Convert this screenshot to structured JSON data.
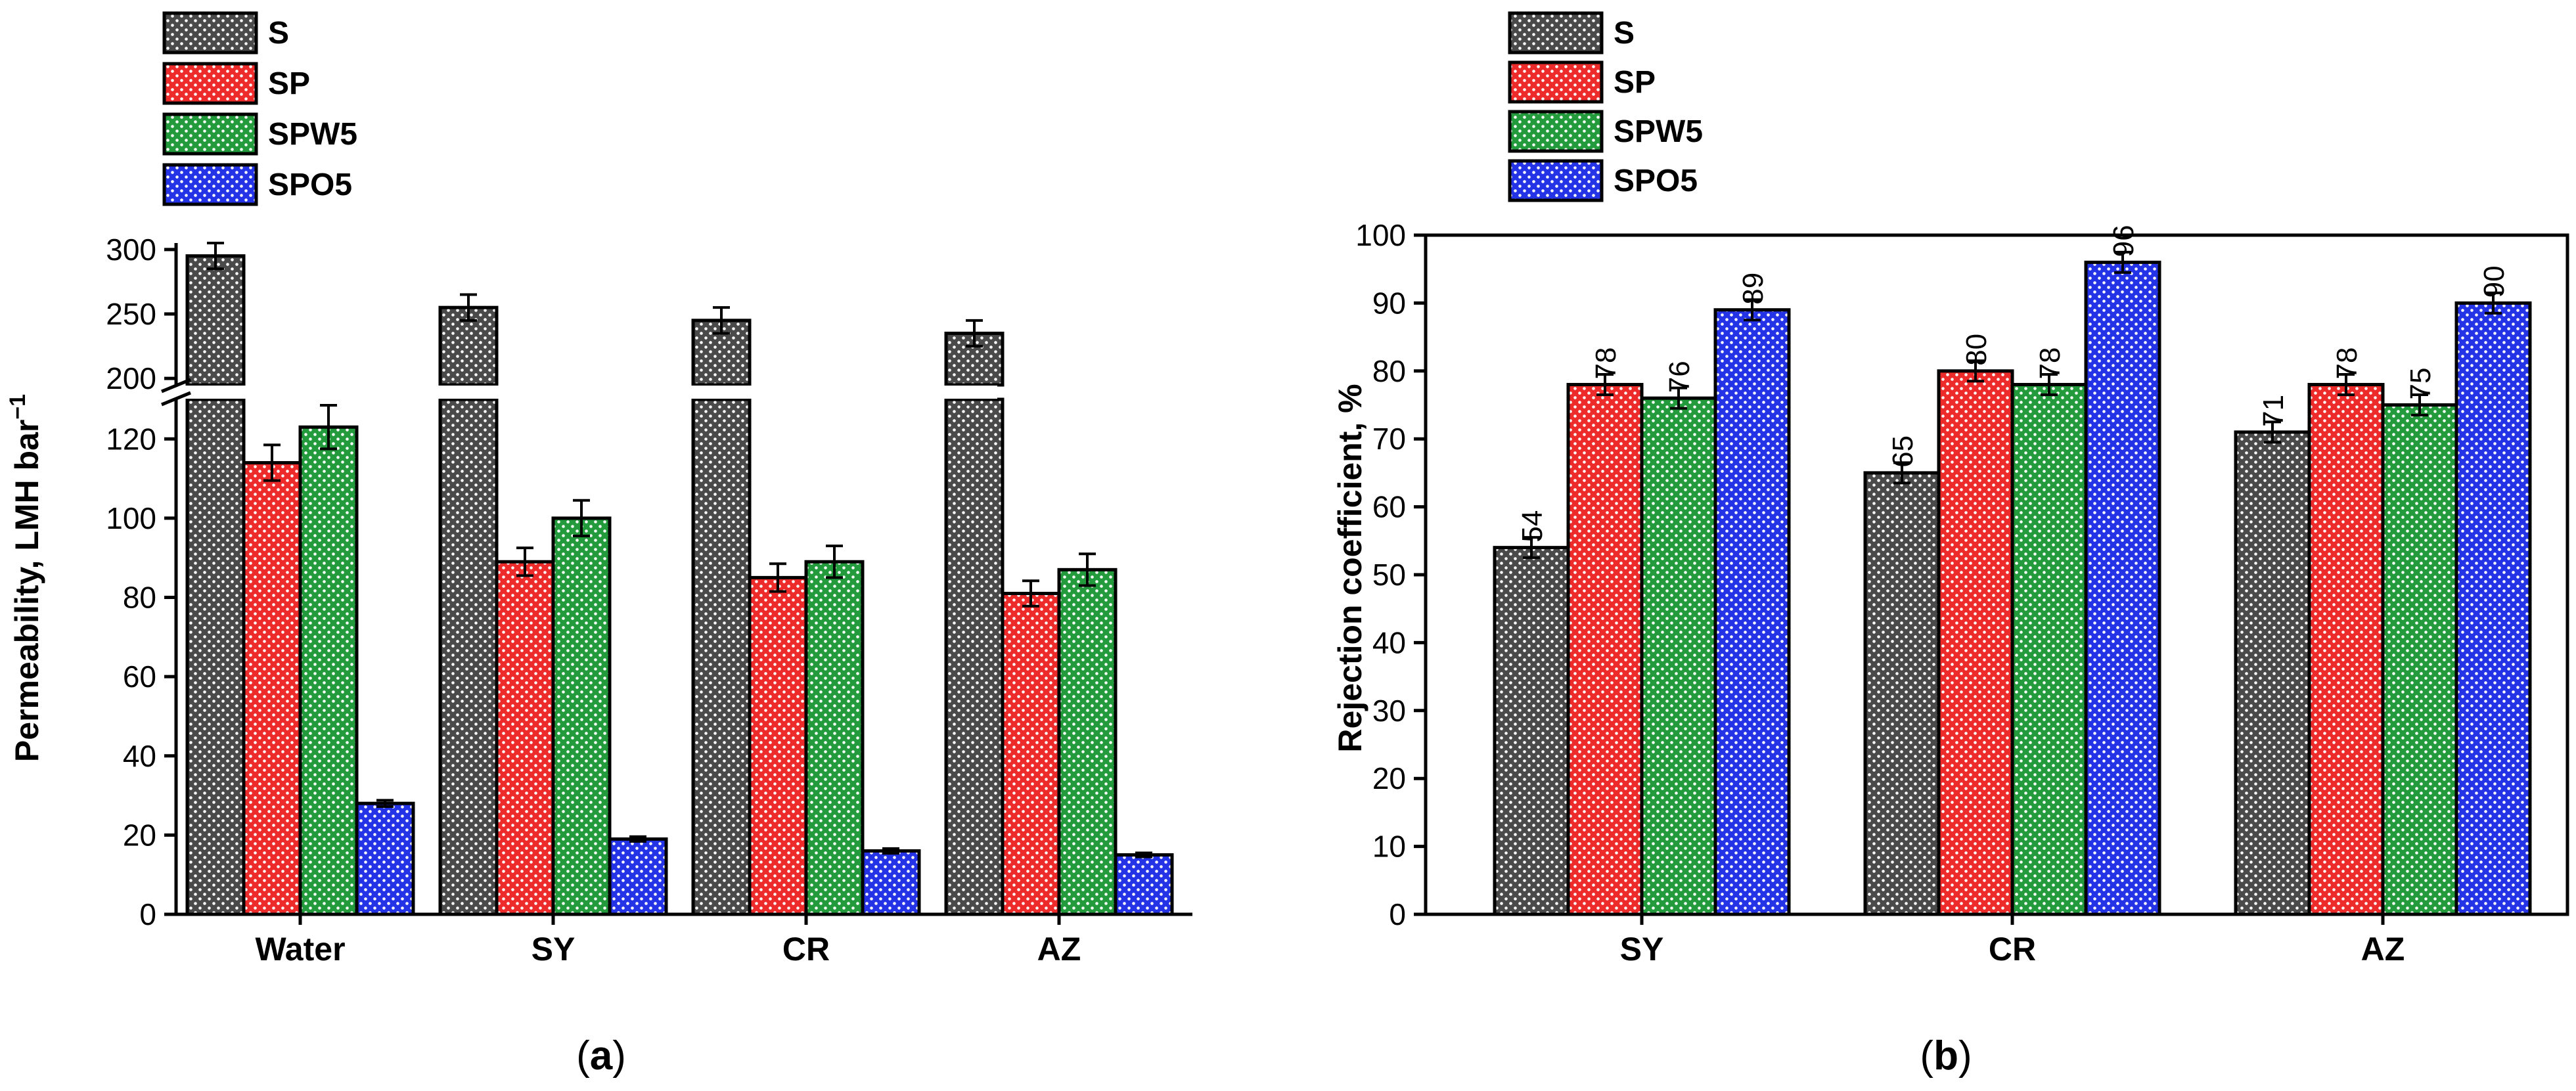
{
  "palette": {
    "S": {
      "fill": "#4a4a4a",
      "dot": "#ffffff"
    },
    "SP": {
      "fill": "#ee2b2b",
      "dot": "#ffffff"
    },
    "SPW5": {
      "fill": "#239a3b",
      "dot": "#ffffff"
    },
    "SPO5": {
      "fill": "#2433e6",
      "dot": "#ffffff"
    }
  },
  "chart_data": [
    {
      "type": "bar",
      "panel_label_open": "(",
      "panel_label_letter": "a",
      "panel_label_close": ")",
      "ylabel": "Permeability, LMH bar",
      "ylabel_sup": "−1",
      "categories": [
        "Water",
        "SY",
        "CR",
        "AZ"
      ],
      "series": [
        {
          "name": "S",
          "values": [
            295,
            255,
            245,
            235
          ],
          "errors": [
            10,
            10,
            10,
            10
          ]
        },
        {
          "name": "SP",
          "values": [
            114,
            89,
            85,
            81
          ],
          "errors": [
            4.5,
            3.5,
            3.5,
            3.2
          ]
        },
        {
          "name": "SPW5",
          "values": [
            123,
            100,
            89,
            87
          ],
          "errors": [
            5.5,
            4.5,
            4.0,
            4.0
          ]
        },
        {
          "name": "SPO5",
          "values": [
            28,
            19,
            16,
            15
          ],
          "errors": [
            0.8,
            0.6,
            0.6,
            0.5
          ]
        }
      ],
      "y_break": {
        "lower_range": [
          0,
          130
        ],
        "upper_range": [
          195,
          305
        ]
      },
      "yticks_lower": [
        0,
        20,
        40,
        60,
        80,
        100,
        120
      ],
      "yticks_upper": [
        200,
        250,
        300
      ],
      "legend_position": "top-left"
    },
    {
      "type": "bar",
      "panel_label_open": "(",
      "panel_label_letter": "b",
      "panel_label_close": ")",
      "ylabel": "Rejection coefficient, %",
      "categories": [
        "SY",
        "CR",
        "AZ"
      ],
      "series": [
        {
          "name": "S",
          "values": [
            54,
            65,
            71
          ],
          "errors": [
            1.5,
            1.5,
            1.5
          ]
        },
        {
          "name": "SP",
          "values": [
            78,
            80,
            78
          ],
          "errors": [
            1.5,
            1.5,
            1.5
          ]
        },
        {
          "name": "SPW5",
          "values": [
            76,
            78,
            75
          ],
          "errors": [
            1.5,
            1.5,
            1.5
          ]
        },
        {
          "name": "SPO5",
          "values": [
            89,
            96,
            90
          ],
          "errors": [
            1.5,
            1.5,
            1.5
          ]
        }
      ],
      "data_labels": [
        [
          "54",
          "78",
          "76",
          "89"
        ],
        [
          "65",
          "80",
          "78",
          "96"
        ],
        [
          "71",
          "78",
          "75",
          "90"
        ]
      ],
      "ylim": [
        0,
        100
      ],
      "yticks": [
        0,
        10,
        20,
        30,
        40,
        50,
        60,
        70,
        80,
        90,
        100
      ],
      "legend_position": "top-left"
    }
  ]
}
